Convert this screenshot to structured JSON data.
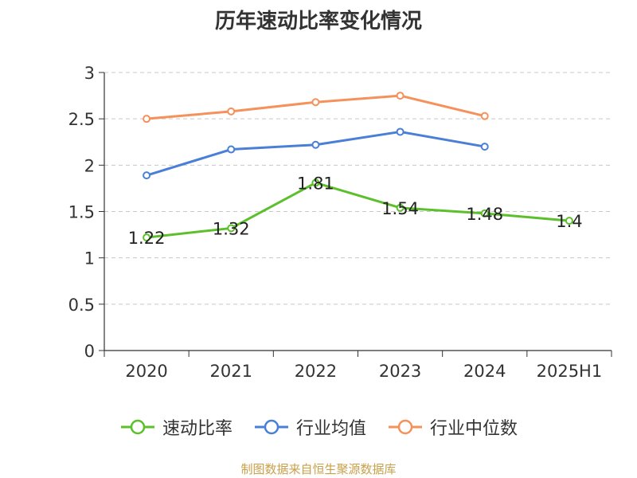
{
  "chart_data": {
    "type": "line",
    "title": "历年速动比率变化情况",
    "categories": [
      "2020",
      "2021",
      "2022",
      "2023",
      "2024",
      "2025H1"
    ],
    "y_ticks": [
      "0",
      "0.5",
      "1",
      "1.5",
      "2",
      "2.5",
      "3"
    ],
    "ylim": [
      0,
      3
    ],
    "grid": true,
    "legend_position": "bottom",
    "series": [
      {
        "name": "速动比率",
        "color": "#5cc02c",
        "values": [
          1.22,
          1.32,
          1.81,
          1.54,
          1.48,
          1.4
        ],
        "labels": [
          "1.22",
          "1.32",
          "1.81",
          "1.54",
          "1.48",
          "1.4"
        ]
      },
      {
        "name": "行业均值",
        "color": "#4a7fd8",
        "values": [
          1.89,
          2.17,
          2.22,
          2.36,
          2.2,
          null
        ]
      },
      {
        "name": "行业中位数",
        "color": "#f5915a",
        "values": [
          2.5,
          2.58,
          2.68,
          2.75,
          2.53,
          null
        ]
      }
    ]
  },
  "source_text": "制图数据来自恒生聚源数据库",
  "source_color": "#c8a04a"
}
